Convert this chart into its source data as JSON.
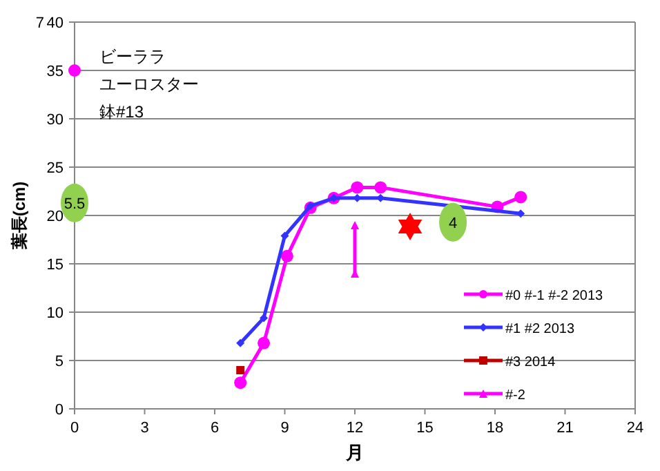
{
  "chart_data": {
    "type": "line",
    "xlabel": "月",
    "ylabel": "葉長(cm)",
    "xlim": [
      0,
      24
    ],
    "xticks": [
      0,
      3,
      6,
      9,
      12,
      15,
      18,
      21,
      24
    ],
    "ylim": [
      0,
      40
    ],
    "yticks": [
      0,
      5,
      10,
      15,
      20,
      25,
      30,
      35,
      40
    ],
    "grid": "y",
    "legend": "bottom right",
    "annotations": [
      "7",
      "ビーララ",
      "ユーロスター",
      "鉢#13",
      {
        "text": "5.5",
        "x": 0,
        "y": 21.3
      },
      {
        "text": "4",
        "x": 16.2,
        "y": 19.3
      }
    ],
    "series": [
      {
        "name": "#0 #-1 #-2 2013",
        "color": "#ff00ff",
        "marker": "circle",
        "x": [
          7.1,
          8.1,
          9.1,
          10.1,
          11.1,
          12.1,
          13.1,
          18.1,
          19.1
        ],
        "values": [
          2.7,
          6.8,
          15.8,
          20.8,
          21.8,
          22.9,
          22.9,
          20.9,
          21.9
        ]
      },
      {
        "name": "#1 #2 2013",
        "color": "#3333ff",
        "marker": "diamond",
        "x": [
          7.1,
          8.1,
          9.0,
          10.1,
          11.1,
          12.1,
          13.1,
          19.1
        ],
        "values": [
          6.8,
          9.4,
          17.9,
          21.0,
          21.8,
          21.8,
          21.8,
          20.2
        ]
      },
      {
        "name": "#3 2014",
        "color": "#c00000",
        "marker": "square",
        "x": [
          7.1
        ],
        "values": [
          4.0
        ]
      },
      {
        "name": "#-2",
        "color": "#ff00ff",
        "marker": "triangle",
        "x": [
          12.0,
          12.0
        ],
        "values": [
          19.0,
          14.0
        ]
      },
      {
        "type": "scatter",
        "color": "#ff00ff",
        "marker": "circle",
        "x": [
          0
        ],
        "values": [
          35
        ]
      }
    ]
  }
}
